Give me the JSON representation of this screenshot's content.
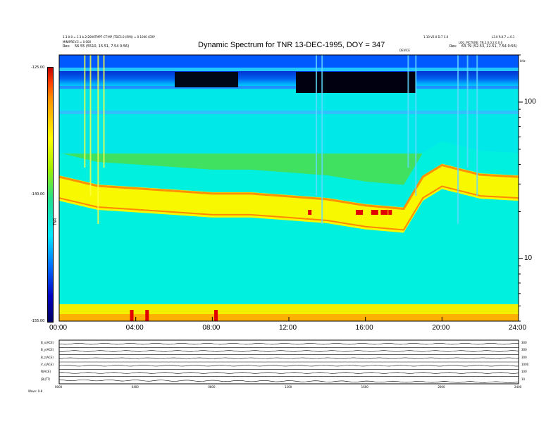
{
  "header": {
    "title": "Dynamic Spectrum for TNR 13-DEC-1995, DOY = 347",
    "left_line1": "1.3.0.0 = 1.3 b.2(2000TMP7-CT-MP (TDC5.0 (RM)) = 0.1000 (GRP",
    "left_line2": "MIN/PREV.3 = 0.000",
    "left_res_label": "Res:",
    "left_res_value": "56.55 (5510, 15.51, 7.54 0:56)",
    "right_line1": "1.10 V2.0 D.7 C.0",
    "right_line2": "L3.0 R.0.7 =.0.1",
    "right_line3": "LOG_PICTURE: TN.2.0.0.2.0.0.0",
    "right_res_label": "Res:",
    "right_res_value": "63.79 (52.53, 22.51, 7.54 0:56)",
    "center_small": "DEVICE",
    "units": "kHz"
  },
  "colorbar": {
    "ticks": [
      "-125.00",
      "-140.00",
      "-155.00"
    ],
    "label": "TNR",
    "colors": [
      "#000000",
      "#0000aa",
      "#0044ff",
      "#00c8ff",
      "#20e890",
      "#80f000",
      "#ffff00",
      "#ff9000",
      "#ff0000"
    ]
  },
  "bottom_panel": {
    "rows": [
      {
        "label": "B_x(ACE)",
        "right": "300"
      },
      {
        "label": "B_y(ACE)",
        "right": "300"
      },
      {
        "label": "B_z(ACE)",
        "right": "300"
      },
      {
        "label": "V_s(ACE)",
        "right": "1000"
      },
      {
        "label": "N(ACE)",
        "right": "100"
      },
      {
        "label": "|B|(TT)",
        "right": "10"
      }
    ],
    "footer_left": "Wave: 0-8",
    "time_ticks": [
      "0000",
      "0400",
      "0800",
      "1200",
      "1600",
      "2000",
      "2400"
    ]
  },
  "chart_data": {
    "type": "heatmap",
    "title": "Dynamic Spectrum for TNR 13-DEC-1995, DOY = 347",
    "xlabel": "",
    "ylabel": "",
    "x_ticks": [
      "00:00",
      "04:00",
      "08:00",
      "12:00",
      "16:00",
      "20:00",
      "24:00"
    ],
    "xlim_hours": [
      0,
      24
    ],
    "y_scale": "log",
    "y_ticks": [
      10,
      100
    ],
    "y_unit": "kHz",
    "ylim_khz": [
      4,
      200
    ],
    "colorbar_range": [
      -155,
      -125
    ],
    "band_profile_hours": [
      0,
      2,
      4,
      6,
      8,
      10,
      12,
      14,
      16,
      18,
      19,
      20,
      22,
      24
    ],
    "band_profile_khz": [
      32,
      28,
      27,
      26,
      25,
      25,
      24,
      23,
      21,
      20,
      32,
      38,
      33,
      32
    ],
    "grid": false
  }
}
